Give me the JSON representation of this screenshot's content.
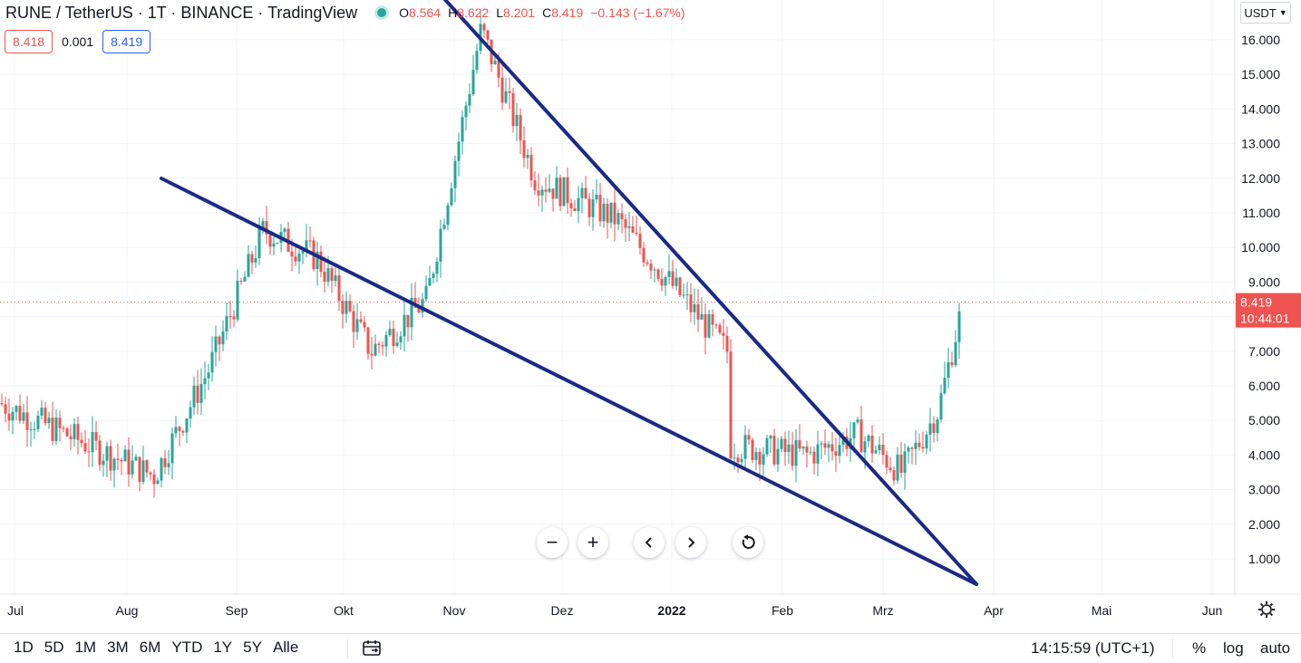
{
  "header": {
    "title": "RUNE / TetherUS · 1T · BINANCE · TradingView",
    "ohlc": {
      "open_label": "O",
      "open": "8.564",
      "high_label": "H",
      "high": "8.622",
      "low_label": "L",
      "low": "8.201",
      "close_label": "C",
      "close": "8.419",
      "change": "−0.143 (−1.67%)"
    }
  },
  "quote": {
    "sell": "8.418",
    "spread": "0.001",
    "buy": "8.419"
  },
  "currency_select": {
    "label": "USDT",
    "icon": "chevron-down-icon"
  },
  "price_axis": {
    "ticks": [
      "16.000",
      "15.000",
      "14.000",
      "13.000",
      "12.000",
      "11.000",
      "10.000",
      "9.000",
      "7.000",
      "6.000",
      "5.000",
      "4.000",
      "3.000",
      "2.000",
      "1.000"
    ],
    "last_price": "8.419",
    "countdown": "10:44:01"
  },
  "time_axis": {
    "labels": [
      "Jul",
      "Aug",
      "Sep",
      "Okt",
      "Nov",
      "Dez",
      "2022",
      "Feb",
      "Mrz",
      "Apr",
      "Mai",
      "Jun"
    ]
  },
  "nav": {
    "zoom_out": "−",
    "zoom_in": "+",
    "scroll_left": "‹",
    "scroll_right": "›",
    "reset_icon": "reset-icon"
  },
  "bottom_toolbar": {
    "ranges": [
      "1D",
      "5D",
      "1M",
      "3M",
      "6M",
      "YTD",
      "1Y",
      "5Y",
      "Alle"
    ],
    "clock": "14:15:59 (UTC+1)",
    "percent": "%",
    "log": "log",
    "auto": "auto"
  },
  "colors": {
    "up": "#26a69a",
    "down": "#ef5350",
    "trendline": "#1a2a85",
    "price_label_bg": "#ef5350",
    "grid": "#f0f3fa",
    "text": "#131722"
  },
  "chart_data": {
    "type": "candlestick",
    "symbol": "RUNE / TetherUS",
    "interval": "1T",
    "exchange": "BINANCE",
    "ylim": [
      0,
      16.5
    ],
    "last_price": 8.419,
    "monthly_path": [
      [
        "Jul",
        5.5
      ],
      [
        "Aug",
        3.4
      ],
      [
        "Aug",
        6.5
      ],
      [
        "Sep",
        10.5
      ],
      [
        "Sep",
        9.7
      ],
      [
        "Okt",
        7.0
      ],
      [
        "Okt",
        8.5
      ],
      [
        "Nov",
        16.3
      ],
      [
        "Nov",
        12.0
      ],
      [
        "Dez",
        10.8
      ],
      [
        "Dez",
        7.0
      ],
      [
        "2022",
        7.4
      ],
      [
        "2022",
        6.2
      ],
      [
        "Feb",
        4.0
      ],
      [
        "Feb",
        4.6
      ],
      [
        "Mrz",
        3.5
      ],
      [
        "Mrz",
        5.3
      ],
      [
        "Mrz",
        8.4
      ]
    ],
    "trendlines": [
      {
        "name": "upper",
        "from": [
          "Nov",
          16.8
        ],
        "to": [
          "Apr",
          0.3
        ]
      },
      {
        "name": "lower",
        "from": [
          "Aug",
          12.0
        ],
        "to": [
          "Apr",
          0.3
        ]
      }
    ]
  }
}
